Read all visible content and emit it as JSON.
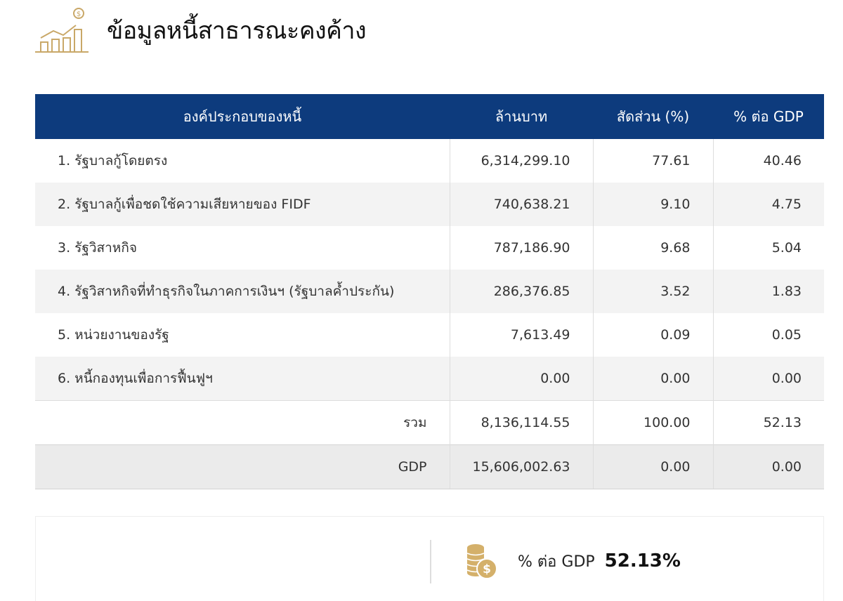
{
  "header": {
    "title": "ข้อมูลหนี้สาธารณะคงค้าง",
    "icon": "chart-growth-coin-icon",
    "icon_color": "#c9a868"
  },
  "table": {
    "header_color": "#0d3b7d",
    "columns": [
      "องค์ประกอบของหนี้",
      "ล้านบาท",
      "สัดส่วน (%)",
      "% ต่อ GDP"
    ],
    "rows": [
      {
        "name": "1. รัฐบาลกู้โดยตรง",
        "amount": "6,314,299.10",
        "share": "77.61",
        "gdp": "40.46"
      },
      {
        "name": "2. รัฐบาลกู้เพื่อชดใช้ความเสียหายของ FIDF",
        "amount": "740,638.21",
        "share": "9.10",
        "gdp": "4.75"
      },
      {
        "name": "3. รัฐวิสาหกิจ",
        "amount": "787,186.90",
        "share": "9.68",
        "gdp": "5.04"
      },
      {
        "name": "4. รัฐวิสาหกิจที่ทำธุรกิจในภาคการเงินฯ (รัฐบาลค้ำประกัน)",
        "amount": "286,376.85",
        "share": "3.52",
        "gdp": "1.83"
      },
      {
        "name": "5. หน่วยงานของรัฐ",
        "amount": "7,613.49",
        "share": "0.09",
        "gdp": "0.05"
      },
      {
        "name": "6. หนี้กองทุนเพื่อการฟื้นฟูฯ",
        "amount": "0.00",
        "share": "0.00",
        "gdp": "0.00"
      }
    ],
    "total": {
      "label": "รวม",
      "amount": "8,136,114.55",
      "share": "100.00",
      "gdp": "52.13"
    },
    "gdp_row": {
      "label": "GDP",
      "amount": "15,606,002.63",
      "share": "0.00",
      "gdp": "0.00"
    }
  },
  "summary": {
    "icon": "coin-stack-icon",
    "label": "% ต่อ GDP",
    "value": "52.13%"
  }
}
